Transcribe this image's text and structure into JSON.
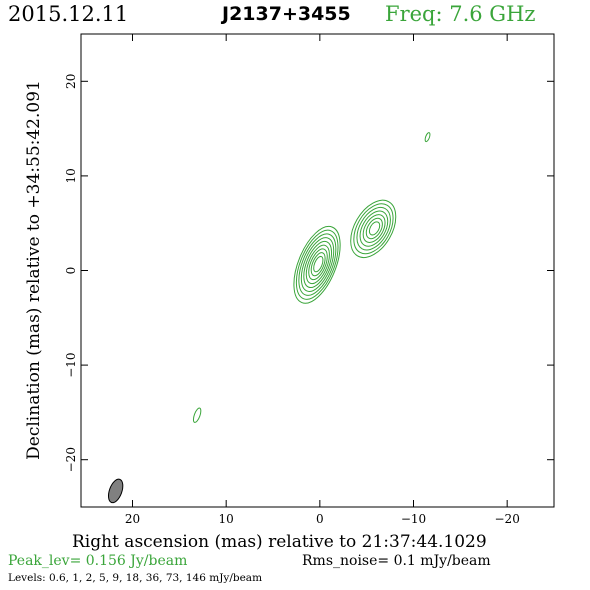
{
  "header": {
    "date": "2015.12.11",
    "source": "J2137+3455",
    "freq": "Freq: 7.6 GHz"
  },
  "footer": {
    "peak": "Peak_lev=  0.156 Jy/beam",
    "rms": "Rms_noise=  0.1 mJy/beam",
    "levels": "Levels: 0.6,   1,   2,   5,   9,   18,   36,   73, 146 mJy/beam"
  },
  "colors": {
    "contour": "#3aa53a",
    "beam_fill": "#808080",
    "frame": "#000000"
  },
  "chart_data": {
    "type": "contour",
    "xlabel": "Right ascension (mas) relative to 21:37:44.1029",
    "ylabel": "Declination (mas) relative to +34:55:42.091",
    "xlim": [
      25.5,
      -25
    ],
    "ylim": [
      -25,
      25
    ],
    "xticks": [
      20,
      10,
      0,
      -10,
      -20
    ],
    "yticks": [
      -20,
      -10,
      0,
      10,
      20
    ],
    "xtick_labels": [
      "20",
      "10",
      "0",
      "−10",
      "−20"
    ],
    "ytick_labels": [
      "−20",
      "−10",
      "0",
      "10",
      "20"
    ],
    "contour_levels_mjy": [
      0.6,
      1,
      2,
      5,
      9,
      18,
      36,
      73,
      146
    ],
    "components": [
      {
        "x": 0.3,
        "y": 0.6,
        "rx": 2.0,
        "ry": 4.3,
        "angle": 22,
        "n": 9
      },
      {
        "x": -5.7,
        "y": 4.4,
        "rx": 2.0,
        "ry": 3.3,
        "angle": 30,
        "n": 7
      },
      {
        "x": -11.5,
        "y": 14.1,
        "rx": 0.2,
        "ry": 0.5,
        "angle": 20,
        "n": 1
      },
      {
        "x": 13.1,
        "y": -15.3,
        "rx": 0.3,
        "ry": 0.8,
        "angle": 20,
        "n": 1
      }
    ],
    "beam": {
      "x": 21.8,
      "y": -23.3,
      "major": 2.6,
      "minor": 1.2,
      "angle": 20
    }
  }
}
